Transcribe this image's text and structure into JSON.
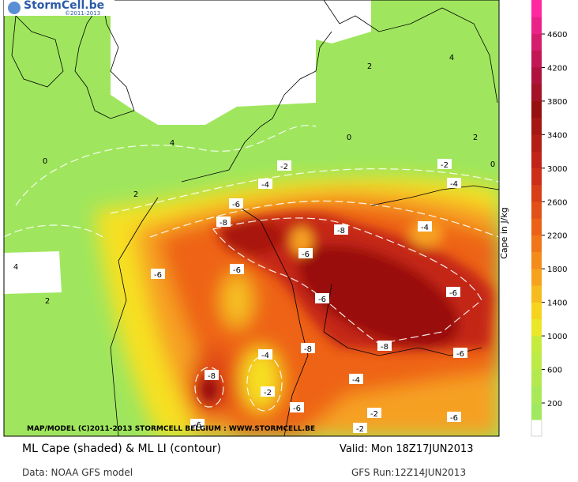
{
  "logo": {
    "name": "StormCell.be",
    "copyright": "©2011-2013"
  },
  "map": {
    "credit": "MAP/MODEL (C)2011-2013 STORMCELL BELGIUM : WWW.STORMCELL.BE",
    "contour_labels": [
      "0",
      "4",
      "2",
      "2",
      "4",
      "0",
      "2",
      "0",
      "-2",
      "-2",
      "-4",
      "-4",
      "-6",
      "-8",
      "-8",
      "-4",
      "-6",
      "-6",
      "-6",
      "-6",
      "-6",
      "4",
      "2",
      "-8",
      "-6",
      "-8",
      "-4",
      "-8",
      "-4",
      "-2",
      "-6",
      "-2",
      "-6",
      "-6",
      "-2"
    ]
  },
  "colorbar": {
    "label": "Cape in J/kg",
    "ticks": [
      "200",
      "600",
      "1000",
      "1400",
      "1800",
      "2200",
      "2600",
      "3000",
      "3400",
      "3800",
      "4200",
      "4600"
    ]
  },
  "footer": {
    "title": "ML Cape (shaded) & ML LI (contour)",
    "valid": "Valid: Mon 18Z17JUN2013",
    "data": "Data: NOAA GFS model",
    "run": "GFS Run:12Z14JUN2013"
  }
}
